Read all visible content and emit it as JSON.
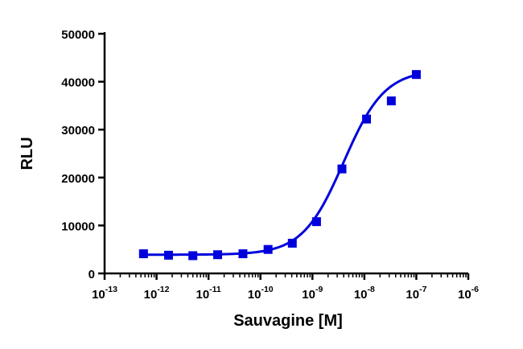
{
  "chart_data": {
    "type": "scatter",
    "xlabel": "Sauvagine [M]",
    "ylabel": "RLU",
    "x_scale": "log",
    "xlim": [
      1e-13,
      1e-06
    ],
    "ylim": [
      0,
      50000
    ],
    "x_ticks": [
      {
        "base": "10",
        "exp": "-13",
        "value": 1e-13
      },
      {
        "base": "10",
        "exp": "-12",
        "value": 1e-12
      },
      {
        "base": "10",
        "exp": "-11",
        "value": 1e-11
      },
      {
        "base": "10",
        "exp": "-10",
        "value": 1e-10
      },
      {
        "base": "10",
        "exp": "-9",
        "value": 1e-09
      },
      {
        "base": "10",
        "exp": "-8",
        "value": 1e-08
      },
      {
        "base": "10",
        "exp": "-7",
        "value": 1e-07
      },
      {
        "base": "10",
        "exp": "-6",
        "value": 1e-06
      }
    ],
    "y_ticks": [
      "0",
      "10000",
      "20000",
      "30000",
      "40000",
      "50000"
    ],
    "grid": false,
    "color": "#0000dd",
    "marker": "square",
    "series": [
      {
        "points": [
          {
            "x": 5.6e-13,
            "y": 4100
          },
          {
            "x": 1.7e-12,
            "y": 3800
          },
          {
            "x": 5e-12,
            "y": 3700
          },
          {
            "x": 1.5e-11,
            "y": 3900
          },
          {
            "x": 4.6e-11,
            "y": 4100
          },
          {
            "x": 1.4e-10,
            "y": 5000
          },
          {
            "x": 4.1e-10,
            "y": 6300
          },
          {
            "x": 1.2e-09,
            "y": 10800
          },
          {
            "x": 3.7e-09,
            "y": 21800
          },
          {
            "x": 1.1e-08,
            "y": 32200
          },
          {
            "x": 3.3e-08,
            "y": 36000
          },
          {
            "x": 1e-07,
            "y": 41500
          }
        ],
        "fit": {
          "model": "sigmoidal dose-response",
          "bottom": 3900,
          "top": 42500,
          "logEC50": -8.4,
          "hill": 1.1
        }
      }
    ]
  }
}
